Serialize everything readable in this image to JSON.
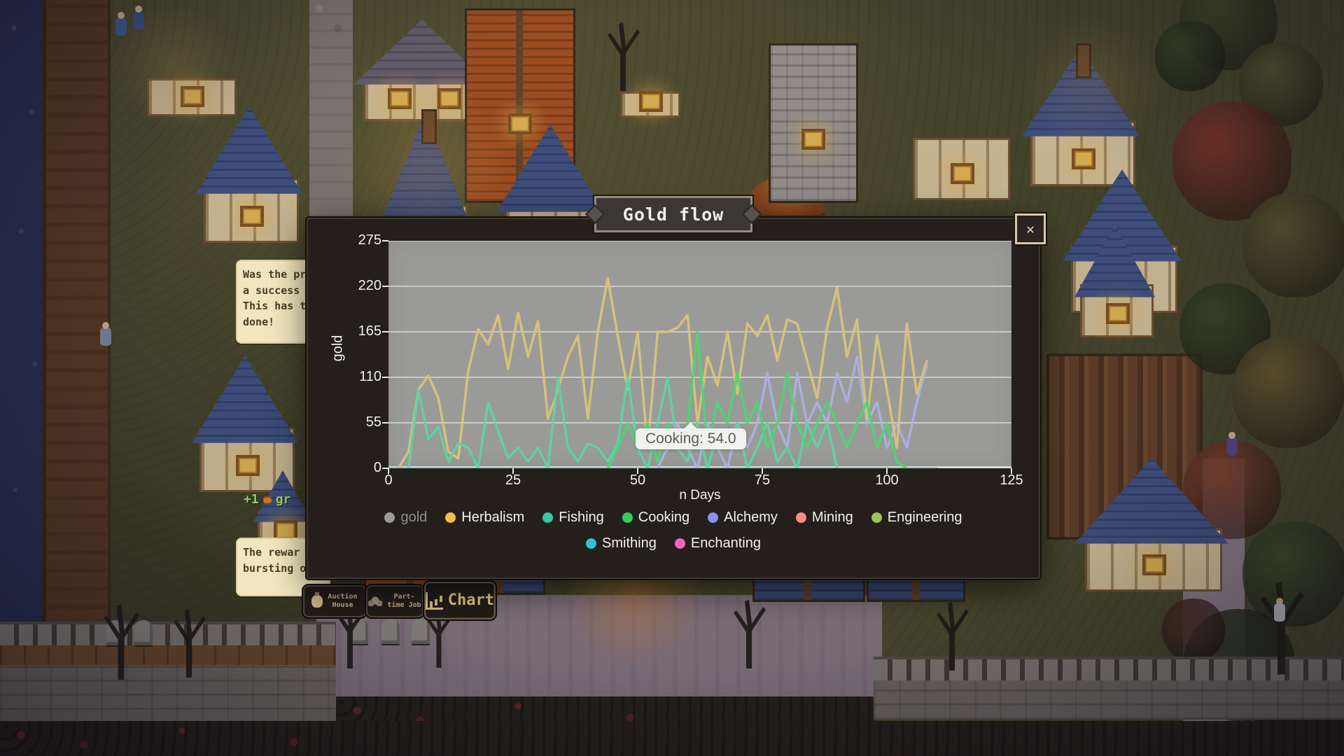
{
  "window": {
    "title": "Gold flow",
    "close_label": "✕"
  },
  "tooltip": {
    "text": "Cooking: 54.0"
  },
  "toolbar": {
    "buttons": [
      {
        "label": "Auction\nHouse",
        "icon": "money-bag-icon"
      },
      {
        "label": "Part-\ntime Job",
        "icon": "people-icon"
      },
      {
        "label": "Chart",
        "icon": "bar-chart-icon"
      }
    ]
  },
  "speech_bubbles": [
    {
      "lines": [
        "Was the pr",
        "a success",
        "This has t",
        "done!"
      ]
    },
    {
      "lines": [
        "The rewar",
        "bursting o"
      ]
    }
  ],
  "floating_text": {
    "plus": "+1",
    "suffix": "gr"
  },
  "chart_data": {
    "type": "line",
    "title": "Gold flow",
    "xlabel": "n Days",
    "ylabel": "gold",
    "xlim": [
      0,
      125
    ],
    "ylim": [
      0,
      275
    ],
    "x_ticks": [
      0,
      25,
      50,
      75,
      100,
      125
    ],
    "y_ticks": [
      0,
      55,
      110,
      165,
      220,
      275
    ],
    "step_days": 2,
    "grid": true,
    "legend_rows": [
      7,
      2
    ],
    "draw_order": [
      "Enchanting",
      "Mining",
      "Engineering",
      "Smithing",
      "Alchemy",
      "Herbalism",
      "Fishing",
      "Cooking"
    ],
    "series": [
      {
        "name": "gold",
        "color": "#9a9a9a",
        "dot": "#9a9a9a",
        "hidden": true,
        "dimmed": true
      },
      {
        "name": "Herbalism",
        "color": "#d8c379",
        "dot": "#efbf4a",
        "x_start": 0,
        "values": [
          0,
          0,
          20,
          95,
          112,
          85,
          20,
          12,
          118,
          168,
          150,
          185,
          120,
          188,
          135,
          178,
          60,
          95,
          135,
          160,
          60,
          165,
          230,
          160,
          95,
          165,
          25,
          165,
          165,
          170,
          185,
          55,
          135,
          100,
          165,
          90,
          175,
          160,
          185,
          130,
          180,
          175,
          130,
          85,
          170,
          218,
          135,
          180,
          60,
          160,
          95,
          25,
          175,
          90,
          130
        ]
      },
      {
        "name": "Fishing",
        "color": "#5fd2a4",
        "dot": "#38c9a2",
        "x_start": 0,
        "values": [
          0,
          0,
          0,
          95,
          35,
          50,
          8,
          30,
          25,
          0,
          80,
          45,
          12,
          25,
          8,
          25,
          0,
          110,
          25,
          8,
          30,
          25,
          8,
          30,
          110,
          25,
          0,
          55,
          110,
          25,
          8,
          55,
          0,
          40,
          25,
          55,
          0,
          25,
          55,
          8,
          25,
          0,
          55,
          25,
          55,
          0
        ]
      },
      {
        "name": "Cooking",
        "color": "#4fd473",
        "dot": "#36cc57",
        "x_start": 44,
        "values": [
          0,
          25,
          54,
          25,
          54,
          8,
          54,
          30,
          54,
          165,
          25,
          80,
          54,
          115,
          54,
          80,
          25,
          54,
          115,
          54,
          25,
          54,
          80,
          54,
          25,
          54,
          80,
          25,
          54,
          8,
          0
        ]
      },
      {
        "name": "Alchemy",
        "color": "#acb0e2",
        "dot": "#8a8ff2",
        "x_start": 54,
        "values": [
          0,
          25,
          54,
          25,
          0,
          54,
          25,
          0,
          54,
          25,
          54,
          115,
          54,
          25,
          115,
          54,
          80,
          54,
          115,
          80,
          135,
          54,
          80,
          25,
          54,
          25,
          80,
          125
        ]
      },
      {
        "name": "Mining",
        "color": "#f59a92",
        "dot": "#f78d84",
        "flat": 0,
        "x_end": 110
      },
      {
        "name": "Engineering",
        "color": "#a9c86b",
        "dot": "#9fc35d",
        "flat": 0,
        "x_end": 110
      },
      {
        "name": "Smithing",
        "color": "#49c9da",
        "dot": "#2cc3d7",
        "flat": 0,
        "x_end": 110
      },
      {
        "name": "Enchanting",
        "color": "#f27bc8",
        "dot": "#f263c6",
        "flat": 0,
        "x_end": 110
      }
    ]
  }
}
